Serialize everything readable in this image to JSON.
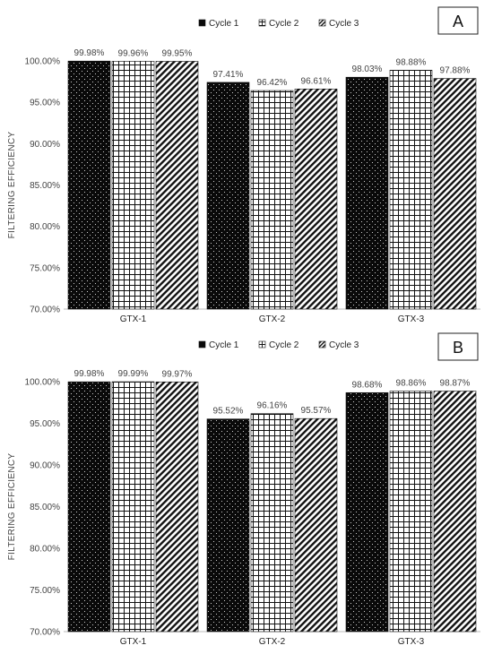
{
  "chart_data": [
    {
      "type": "bar",
      "panel_label": "A",
      "categories": [
        "GTX-1",
        "GTX-2",
        "GTX-3"
      ],
      "series": [
        {
          "name": "Cycle 1",
          "values": [
            99.98,
            97.41,
            98.03
          ],
          "labels": [
            "99.98%",
            "97.41%",
            "98.03%"
          ],
          "pattern": "dots"
        },
        {
          "name": "Cycle 2",
          "values": [
            99.96,
            96.42,
            98.88
          ],
          "labels": [
            "99.96%",
            "96.42%",
            "98.88%"
          ],
          "pattern": "grid"
        },
        {
          "name": "Cycle 3",
          "values": [
            99.95,
            96.61,
            97.88
          ],
          "labels": [
            "99.95%",
            "96.61%",
            "97.88%"
          ],
          "pattern": "diagonal"
        }
      ],
      "ylabel": "FILTERING EFFICIENCY",
      "ylim": [
        70,
        100
      ],
      "yticks": [
        "70.00%",
        "75.00%",
        "80.00%",
        "85.00%",
        "90.00%",
        "95.00%",
        "100.00%"
      ],
      "legend_position": "top-center",
      "grid": false
    },
    {
      "type": "bar",
      "panel_label": "B",
      "categories": [
        "GTX-1",
        "GTX-2",
        "GTX-3"
      ],
      "series": [
        {
          "name": "Cycle 1",
          "values": [
            99.98,
            95.52,
            98.68
          ],
          "labels": [
            "99.98%",
            "95.52%",
            "98.68%"
          ],
          "pattern": "dots"
        },
        {
          "name": "Cycle 2",
          "values": [
            99.99,
            96.16,
            98.86
          ],
          "labels": [
            "99.99%",
            "96.16%",
            "98.86%"
          ],
          "pattern": "grid"
        },
        {
          "name": "Cycle 3",
          "values": [
            99.97,
            95.57,
            98.87
          ],
          "labels": [
            "99.97%",
            "95.57%",
            "98.87%"
          ],
          "pattern": "diagonal"
        }
      ],
      "ylabel": "FILTERING EFFICIENCY",
      "ylim": [
        70,
        100
      ],
      "yticks": [
        "70.00%",
        "75.00%",
        "80.00%",
        "85.00%",
        "90.00%",
        "95.00%",
        "100.00%"
      ],
      "legend_position": "top-center",
      "grid": false
    }
  ]
}
